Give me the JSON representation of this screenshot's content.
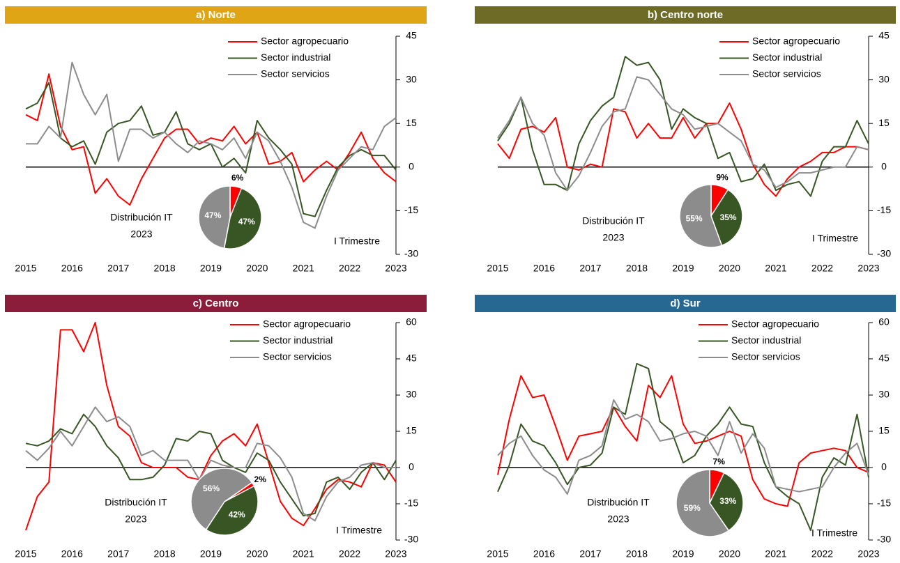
{
  "chart_data": [
    {
      "type": "line",
      "title": "a) Norte",
      "categories": [
        "2015",
        null,
        null,
        null,
        "2016",
        null,
        null,
        null,
        "2017",
        null,
        null,
        null,
        "2018",
        null,
        null,
        null,
        "2019",
        null,
        null,
        null,
        "2020",
        null,
        null,
        null,
        "2021",
        null,
        null,
        null,
        "2022",
        null,
        null,
        null,
        "2023"
      ],
      "series": [
        {
          "name": "Sector agropecuario",
          "color": "#ff0000",
          "values": [
            18,
            16,
            32,
            14,
            6,
            7,
            -9,
            -4,
            -10,
            -13,
            -4,
            3,
            10,
            13,
            13,
            8,
            10,
            9,
            14,
            8,
            12,
            1,
            2,
            5,
            -5,
            -1,
            2,
            -1,
            5,
            12,
            3,
            -2,
            -5
          ]
        },
        {
          "name": "Sector industrial",
          "color": "#375623",
          "values": [
            20,
            22,
            29,
            10,
            7,
            9,
            1,
            12,
            15,
            16,
            21,
            11,
            12,
            19,
            8,
            6,
            8,
            0,
            3,
            -2,
            16,
            10,
            6,
            1,
            -16,
            -17,
            -8,
            0,
            4,
            6,
            4,
            4,
            -1
          ]
        },
        {
          "name": "Sector servicios",
          "color": "#8c8c8c",
          "values": [
            8,
            8,
            14,
            10,
            36,
            25,
            18,
            25,
            2,
            13,
            13,
            10,
            12,
            8,
            5,
            9,
            8,
            6,
            10,
            3,
            12,
            9,
            2,
            -7,
            -19,
            -21,
            -10,
            -1,
            3,
            7,
            6,
            14,
            17
          ]
        }
      ],
      "ylim": [
        -30,
        45
      ],
      "yticks": [
        -30,
        -15,
        0,
        15,
        30,
        45
      ],
      "annotation": "I Trimestre",
      "inset": {
        "type": "pie",
        "title": [
          "Distribución IT",
          "2023"
        ],
        "values": [
          6,
          47,
          47
        ],
        "value_labels": [
          "6%",
          "47%",
          "47%"
        ],
        "colors": [
          "#ff0000",
          "#375623",
          "#8c8c8c"
        ]
      }
    },
    {
      "type": "line",
      "title": "b) Centro norte",
      "categories": [
        "2015",
        null,
        null,
        null,
        "2016",
        null,
        null,
        null,
        "2017",
        null,
        null,
        null,
        "2018",
        null,
        null,
        null,
        "2019",
        null,
        null,
        null,
        "2020",
        null,
        null,
        null,
        "2021",
        null,
        null,
        null,
        "2022",
        null,
        null,
        null,
        "2023"
      ],
      "series": [
        {
          "name": "Sector agropecuario",
          "color": "#ff0000",
          "values": [
            8,
            3,
            13,
            14,
            12,
            17,
            0,
            -1,
            1,
            0,
            20,
            19,
            10,
            15,
            10,
            10,
            17,
            10,
            15,
            15,
            22,
            13,
            1,
            -6,
            -10,
            -4,
            0,
            2,
            5,
            5,
            7,
            7,
            6
          ]
        },
        {
          "name": "Sector industrial",
          "color": "#375623",
          "values": [
            9,
            15,
            24,
            6,
            -6,
            -6,
            -8,
            8,
            16,
            21,
            24,
            38,
            35,
            36,
            30,
            13,
            20,
            17,
            15,
            3,
            5,
            -5,
            -4,
            1,
            -8,
            -6,
            -5,
            -10,
            2,
            7,
            7,
            16,
            8
          ]
        },
        {
          "name": "Sector servicios",
          "color": "#8c8c8c",
          "values": [
            10,
            16,
            24,
            15,
            11,
            -2,
            -8,
            -3,
            5,
            14,
            19,
            20,
            31,
            30,
            25,
            20,
            18,
            13,
            14,
            15,
            12,
            9,
            1,
            -1,
            -7,
            -5,
            -2,
            -2,
            -1,
            0,
            0,
            7,
            6
          ]
        }
      ],
      "ylim": [
        -30,
        45
      ],
      "yticks": [
        -30,
        -15,
        0,
        15,
        30,
        45
      ],
      "annotation": "I Trimestre",
      "inset": {
        "type": "pie",
        "title": [
          "Distribución IT",
          "2023"
        ],
        "values": [
          9,
          35,
          55
        ],
        "value_labels": [
          "9%",
          "35%",
          "55%"
        ],
        "colors": [
          "#ff0000",
          "#375623",
          "#8c8c8c"
        ]
      }
    },
    {
      "type": "line",
      "title": "c) Centro",
      "categories": [
        "2015",
        null,
        null,
        null,
        "2016",
        null,
        null,
        null,
        "2017",
        null,
        null,
        null,
        "2018",
        null,
        null,
        null,
        "2019",
        null,
        null,
        null,
        "2020",
        null,
        null,
        null,
        "2021",
        null,
        null,
        null,
        "2022",
        null,
        null,
        null,
        "2023"
      ],
      "series": [
        {
          "name": "Sector agropecuario",
          "color": "#ff0000",
          "values": [
            -26,
            -12,
            -6,
            57,
            57,
            48,
            60,
            34,
            17,
            13,
            2,
            0,
            0,
            0,
            -4,
            -5,
            5,
            11,
            14,
            9,
            18,
            2,
            -14,
            -21,
            -24,
            -17,
            -9,
            -5,
            -6,
            -8,
            2,
            1,
            -6
          ]
        },
        {
          "name": "Sector industrial",
          "color": "#375623",
          "values": [
            10,
            9,
            11,
            16,
            14,
            22,
            17,
            9,
            4,
            -5,
            -5,
            -4,
            1,
            12,
            11,
            15,
            14,
            3,
            0,
            -2,
            6,
            3,
            -6,
            -13,
            -20,
            -19,
            -6,
            -4,
            -9,
            -2,
            2,
            -5,
            3
          ]
        },
        {
          "name": "Sector servicios",
          "color": "#8c8c8c",
          "values": [
            7,
            3,
            8,
            15,
            9,
            17,
            25,
            19,
            21,
            17,
            5,
            7,
            3,
            3,
            3,
            -5,
            3,
            1,
            0,
            0,
            10,
            9,
            4,
            -4,
            -19,
            -22,
            -12,
            -6,
            -4,
            1,
            2,
            0,
            0
          ]
        }
      ],
      "ylim": [
        -30,
        60
      ],
      "yticks": [
        -30,
        -15,
        0,
        15,
        30,
        45,
        60
      ],
      "annotation": "I Trimestre",
      "inset": {
        "type": "pie",
        "title": [
          "Distribución IT",
          "2023"
        ],
        "values": [
          2,
          42,
          56
        ],
        "value_labels": [
          "2%",
          "42%",
          "56%"
        ],
        "colors": [
          "#ff0000",
          "#375623",
          "#8c8c8c"
        ]
      }
    },
    {
      "type": "line",
      "title": "d) Sur",
      "categories": [
        "2015",
        null,
        null,
        null,
        "2016",
        null,
        null,
        null,
        "2017",
        null,
        null,
        null,
        "2018",
        null,
        null,
        null,
        "2019",
        null,
        null,
        null,
        "2020",
        null,
        null,
        null,
        "2021",
        null,
        null,
        null,
        "2022",
        null,
        null,
        null,
        "2023"
      ],
      "series": [
        {
          "name": "Sector agropecuario",
          "color": "#ff0000",
          "values": [
            -3,
            20,
            38,
            29,
            30,
            17,
            3,
            13,
            14,
            15,
            25,
            17,
            11,
            34,
            29,
            38,
            18,
            10,
            11,
            13,
            15,
            13,
            -5,
            -13,
            -15,
            -16,
            2,
            6,
            7,
            8,
            7,
            0,
            -2
          ]
        },
        {
          "name": "Sector industrial",
          "color": "#375623",
          "values": [
            -10,
            1,
            18,
            11,
            9,
            2,
            -7,
            0,
            1,
            6,
            25,
            22,
            43,
            41,
            19,
            15,
            2,
            5,
            13,
            18,
            25,
            18,
            17,
            2,
            -8,
            -12,
            -15,
            -26,
            -4,
            4,
            1,
            22,
            -4
          ]
        },
        {
          "name": "Sector servicios",
          "color": "#8c8c8c",
          "values": [
            5,
            10,
            13,
            5,
            -1,
            -4,
            -11,
            3,
            5,
            9,
            28,
            20,
            22,
            19,
            11,
            12,
            14,
            15,
            13,
            5,
            19,
            6,
            14,
            8,
            -8,
            -9,
            -10,
            -9,
            -8,
            0,
            6,
            10,
            -3
          ]
        }
      ],
      "ylim": [
        -30,
        60
      ],
      "yticks": [
        -30,
        -15,
        0,
        15,
        30,
        45,
        60
      ],
      "annotation": "I Trimestre",
      "inset": {
        "type": "pie",
        "title": [
          "Distribución IT",
          "2023"
        ],
        "values": [
          7,
          33,
          59
        ],
        "value_labels": [
          "7%",
          "33%",
          "59%"
        ],
        "colors": [
          "#ff0000",
          "#375623",
          "#8c8c8c"
        ]
      }
    }
  ]
}
